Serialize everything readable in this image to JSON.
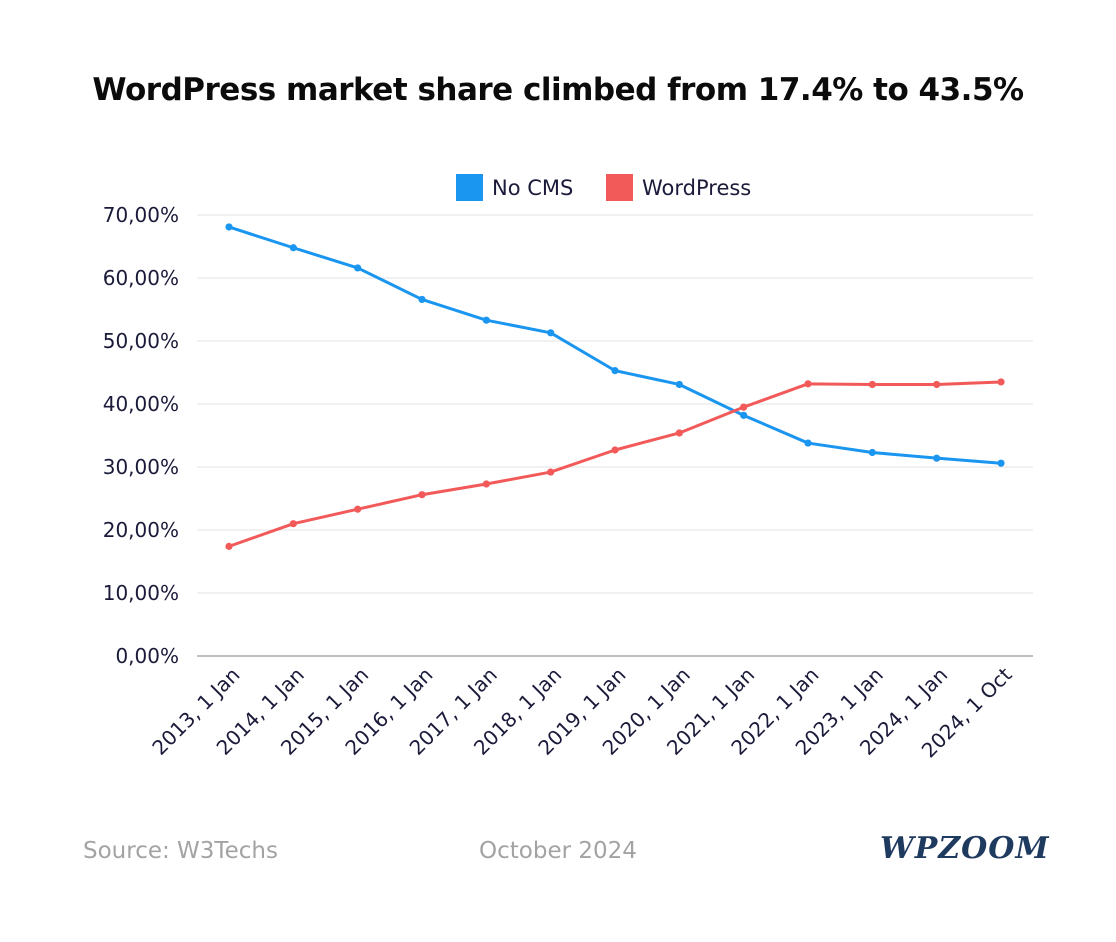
{
  "chart_data": {
    "type": "line",
    "title": "WordPress market share climbed from 17.4% to 43.5%",
    "categories": [
      "2013, 1 Jan",
      "2014, 1 Jan",
      "2015, 1 Jan",
      "2016, 1 Jan",
      "2017, 1 Jan",
      "2018, 1 Jan",
      "2019, 1 Jan",
      "2020, 1 Jan",
      "2021, 1 Jan",
      "2022, 1 Jan",
      "2023, 1 Jan",
      "2024, 1 Jan",
      "2024, 1 Oct"
    ],
    "series": [
      {
        "name": "No CMS",
        "color": "#1a96f0",
        "values": [
          68.1,
          64.8,
          61.6,
          56.6,
          53.3,
          51.3,
          45.3,
          43.1,
          38.2,
          33.8,
          32.3,
          31.4,
          30.6
        ]
      },
      {
        "name": "WordPress",
        "color": "#f25a5a",
        "values": [
          17.4,
          21.0,
          23.3,
          25.6,
          27.3,
          29.2,
          32.7,
          35.4,
          39.5,
          43.2,
          43.1,
          43.1,
          43.5
        ]
      }
    ],
    "ylim": [
      0,
      70
    ],
    "yticks": [
      0,
      10,
      20,
      30,
      40,
      50,
      60,
      70
    ],
    "ytick_labels": [
      "0,00%",
      "10,00%",
      "20,00%",
      "30,00%",
      "40,00%",
      "50,00%",
      "60,00%",
      "70,00%"
    ],
    "grid": true,
    "legend_position": "top-center",
    "xlabel": "",
    "ylabel": ""
  },
  "footer": {
    "source": "Source: W3Techs",
    "date": "October 2024",
    "logo": "WPZOOM"
  }
}
